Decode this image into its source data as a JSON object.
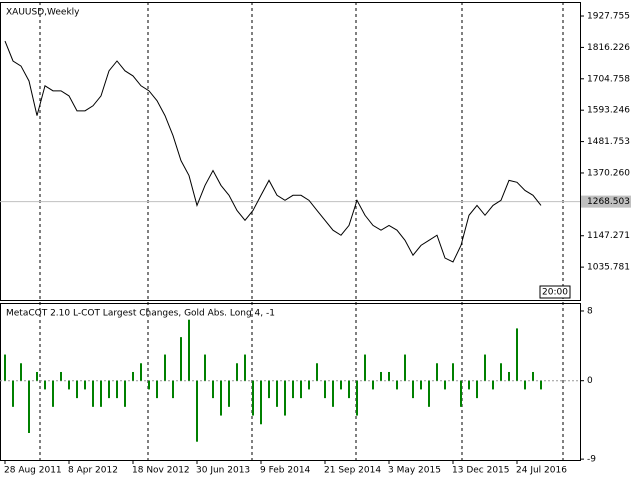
{
  "chart_data": [
    {
      "type": "line",
      "title": "XAUUSD,Weekly",
      "color": "#000000",
      "values": [
        1839,
        1768,
        1750,
        1697,
        1574,
        1680,
        1662,
        1662,
        1644,
        1591,
        1591,
        1609,
        1644,
        1733,
        1768,
        1733,
        1715,
        1680,
        1662,
        1627,
        1574,
        1503,
        1414,
        1361,
        1255,
        1326,
        1379,
        1326,
        1291,
        1237,
        1202,
        1237,
        1291,
        1344,
        1291,
        1273,
        1291,
        1291,
        1273,
        1237,
        1202,
        1167,
        1149,
        1184,
        1273,
        1220,
        1184,
        1167,
        1184,
        1167,
        1131,
        1078,
        1113,
        1131,
        1149,
        1068,
        1054,
        1113,
        1220,
        1255,
        1220,
        1255,
        1273,
        1344,
        1337,
        1308,
        1291,
        1255
      ],
      "ylim": [
        919,
        1974
      ],
      "yticks": [
        1927.755,
        1816.226,
        1704.758,
        1593.246,
        1481.753,
        {
          "value": 1370.26,
          "label": "1370.260"
        },
        1147.271,
        1035.781
      ],
      "current_price": 1268.503,
      "time_label": "20:00"
    },
    {
      "type": "bar",
      "title": "MetaCOT 2.10 L-COT Largest Changes, Gold Abs. Long 4, -1",
      "color": "#008000",
      "values": [
        3,
        -3,
        2,
        -6,
        1,
        -1,
        -3,
        1,
        -1,
        -2,
        -1,
        -3,
        -3,
        -2,
        -2,
        -3,
        1,
        2,
        -1,
        -2,
        3,
        -2,
        5,
        7,
        -7,
        3,
        -2,
        -4,
        -3,
        2,
        3,
        -4,
        -5,
        -2,
        -3,
        -4,
        -2,
        -2,
        -1,
        2,
        -2,
        -3,
        -1,
        -2,
        -4,
        3,
        -1,
        1,
        1,
        -1,
        3,
        -2,
        -1,
        -3,
        2,
        -1,
        2,
        -3,
        -1,
        -2,
        3,
        -1,
        2,
        1,
        6,
        -1,
        1,
        -1
      ],
      "ylim": [
        -9.1,
        8.8
      ],
      "yticks": [
        -9,
        0,
        8
      ],
      "x_labels": [
        "28 Aug 2011",
        "8 Apr 2012",
        "18 Nov 2012",
        "30 Jun 2013",
        "9 Feb 2014",
        "21 Sep 2014",
        "3 May 2015",
        "13 Dec 2015",
        "24 Jul 2016"
      ]
    }
  ]
}
